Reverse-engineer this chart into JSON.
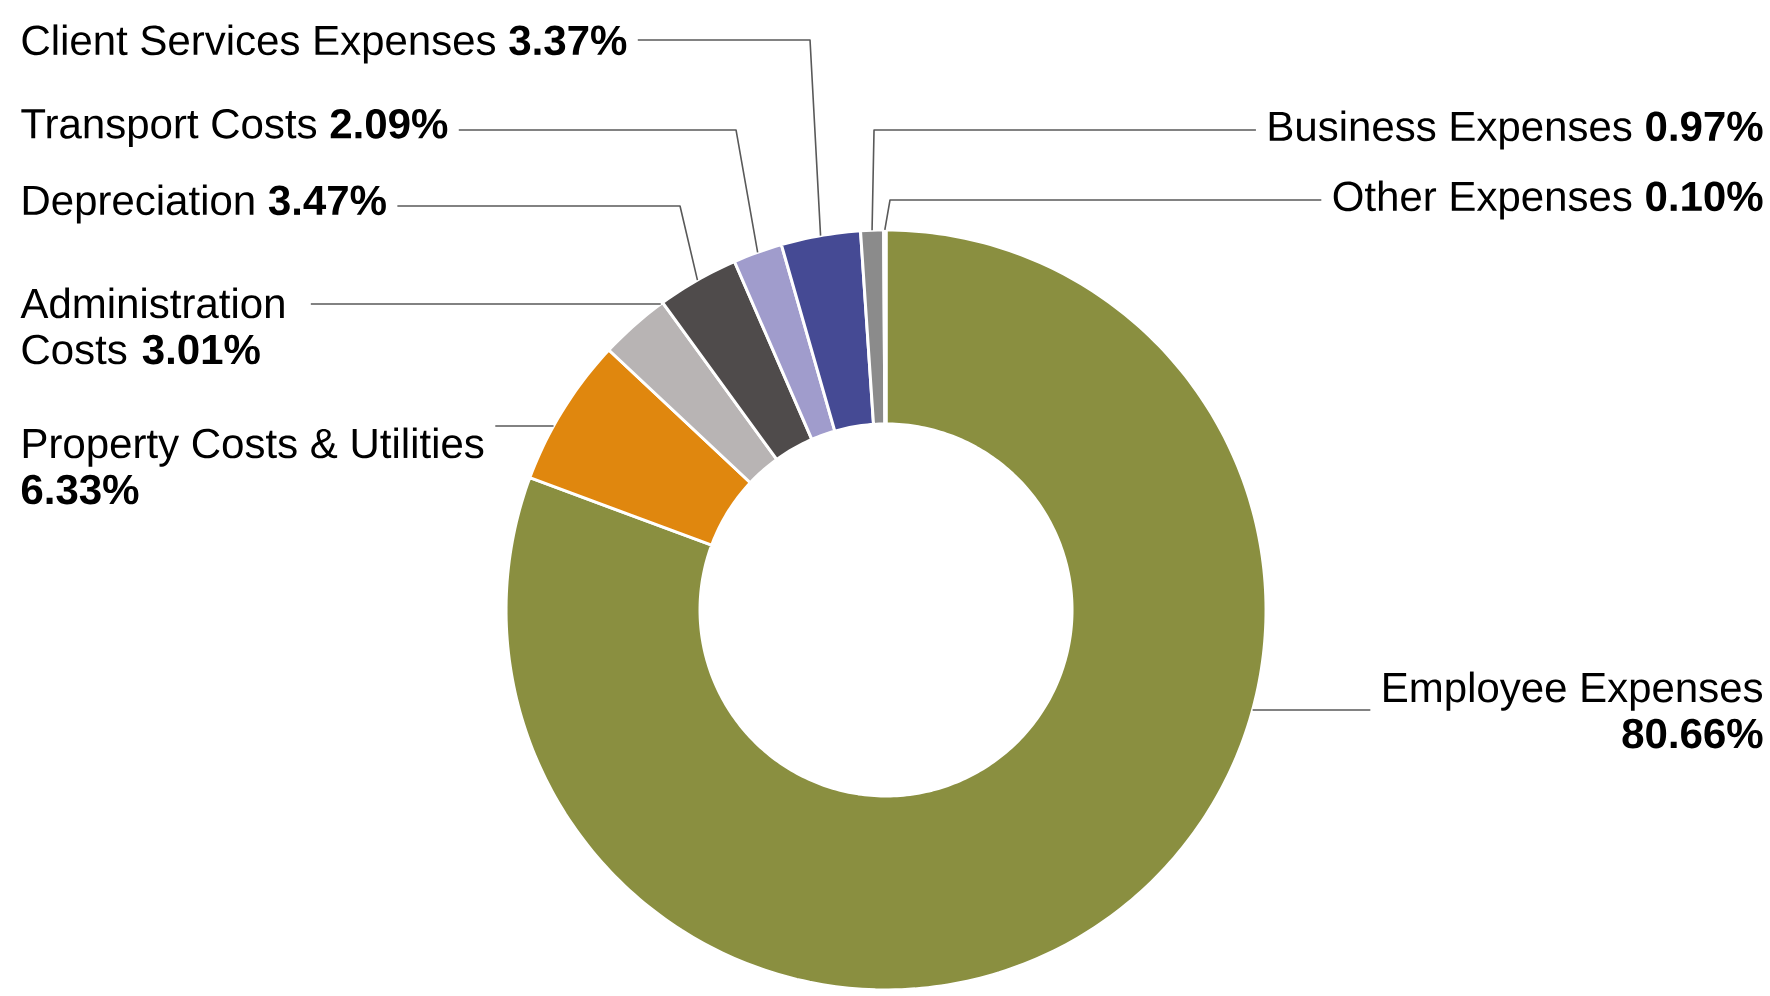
{
  "chart_data": {
    "type": "donut",
    "categories": [
      "Employee Expenses",
      "Property Costs & Utilities",
      "Administration Costs",
      "Depreciation",
      "Transport Costs",
      "Client Services Expenses",
      "Business Expenses",
      "Other Expenses"
    ],
    "values": [
      80.66,
      6.33,
      3.01,
      3.47,
      2.09,
      3.37,
      0.97,
      0.1
    ],
    "colors": [
      "#8a8f40",
      "#e0870e",
      "#b8b4b4",
      "#4f4b4b",
      "#a09ccc",
      "#454a94",
      "#8b8b8b",
      "#c8c8c8"
    ],
    "value_labels": [
      "80.66%",
      "6.33%",
      "3.01%",
      "3.47%",
      "2.09%",
      "3.37%",
      "0.97%",
      "0.10%"
    ]
  }
}
